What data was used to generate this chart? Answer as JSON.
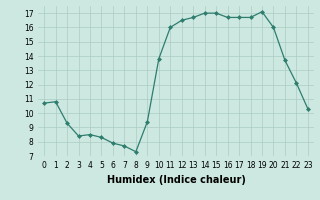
{
  "x": [
    0,
    1,
    2,
    3,
    4,
    5,
    6,
    7,
    8,
    9,
    10,
    11,
    12,
    13,
    14,
    15,
    16,
    17,
    18,
    19,
    20,
    21,
    22,
    23
  ],
  "y": [
    10.7,
    10.8,
    9.3,
    8.4,
    8.5,
    8.3,
    7.9,
    7.7,
    7.3,
    9.4,
    13.8,
    16.0,
    16.5,
    16.7,
    17.0,
    17.0,
    16.7,
    16.7,
    16.7,
    17.1,
    16.0,
    13.7,
    12.1,
    10.3
  ],
  "line_color": "#2e7d6e",
  "marker": "D",
  "marker_size": 2,
  "bg_color": "#cce8e0",
  "grid_color": "#aaccc4",
  "xlabel": "Humidex (Indice chaleur)",
  "ylim": [
    7,
    17.5
  ],
  "xlim": [
    -0.5,
    23.5
  ],
  "yticks": [
    7,
    8,
    9,
    10,
    11,
    12,
    13,
    14,
    15,
    16,
    17
  ],
  "xticks": [
    0,
    1,
    2,
    3,
    4,
    5,
    6,
    7,
    8,
    9,
    10,
    11,
    12,
    13,
    14,
    15,
    16,
    17,
    18,
    19,
    20,
    21,
    22,
    23
  ],
  "xtick_labels": [
    "0",
    "1",
    "2",
    "3",
    "4",
    "5",
    "6",
    "7",
    "8",
    "9",
    "10",
    "11",
    "12",
    "13",
    "14",
    "15",
    "16",
    "17",
    "18",
    "19",
    "20",
    "21",
    "22",
    "23"
  ],
  "label_fontsize": 7,
  "tick_fontsize": 5.5
}
